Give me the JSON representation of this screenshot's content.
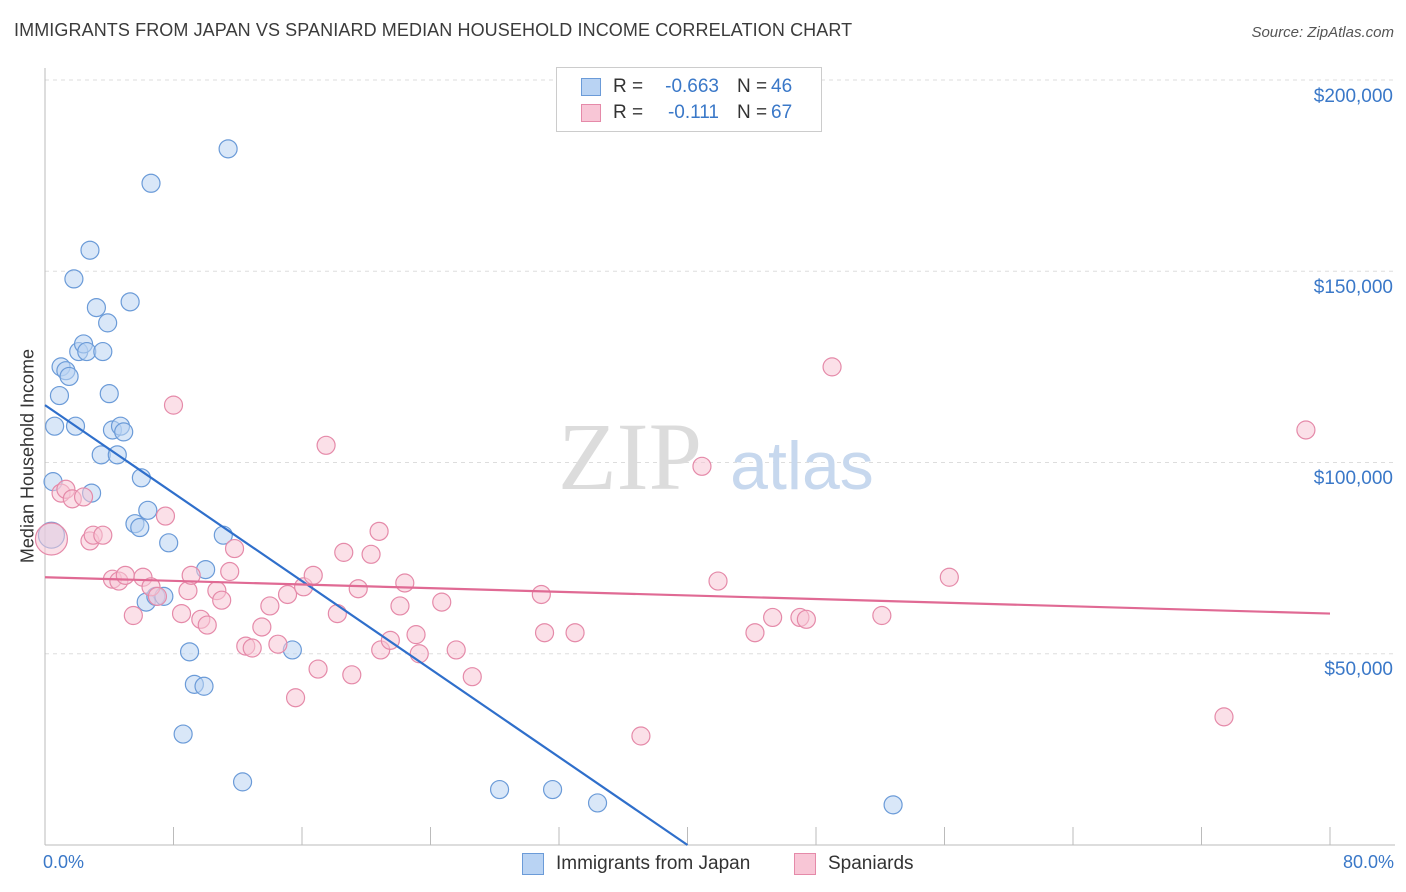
{
  "title": "IMMIGRANTS FROM JAPAN VS SPANIARD MEDIAN HOUSEHOLD INCOME CORRELATION CHART",
  "source": "Source: ZipAtlas.com",
  "watermark": {
    "zip": "ZIP",
    "atlas": "atlas"
  },
  "legend": {
    "rows": [
      {
        "r_label": "R =",
        "r_value": "-0.663",
        "n_label": "N =",
        "n_value": "46",
        "fill": "#b9d3f3",
        "stroke": "#6b9bd8"
      },
      {
        "r_label": "R =",
        "r_value": "-0.111",
        "n_label": "N =",
        "n_value": "67",
        "fill": "#f8c6d6",
        "stroke": "#e58aa9"
      }
    ]
  },
  "bottom_legend": [
    {
      "label": "Immigrants from Japan",
      "fill": "#b9d3f3",
      "stroke": "#6b9bd8"
    },
    {
      "label": "Spaniards",
      "fill": "#f8c6d6",
      "stroke": "#e58aa9"
    }
  ],
  "x_axis": {
    "min_label": "0.0%",
    "max_label": "80.0%"
  },
  "y_axis": {
    "label": "Median Household Income",
    "ticks": [
      "$200,000",
      "$150,000",
      "$100,000",
      "$50,000"
    ]
  },
  "chart_data": {
    "type": "scatter",
    "title": "IMMIGRANTS FROM JAPAN VS SPANIARD MEDIAN HOUSEHOLD INCOME CORRELATION CHART",
    "xlabel": "",
    "ylabel": "Median Household Income",
    "xlim": [
      0,
      80
    ],
    "ylim": [
      0,
      200000
    ],
    "yticks": [
      50000,
      100000,
      150000,
      200000
    ],
    "series": [
      {
        "name": "Immigrants from Japan",
        "color": "#6b9bd8",
        "fill": "#b9d3f3",
        "line_color": "#2f6fcb",
        "trend": {
          "x": [
            0.0,
            40.0
          ],
          "y": [
            115000,
            0
          ]
        },
        "points": [
          [
            0.4,
            81000
          ],
          [
            0.5,
            95000
          ],
          [
            0.6,
            109500
          ],
          [
            0.9,
            117500
          ],
          [
            1.0,
            125000
          ],
          [
            1.3,
            124000
          ],
          [
            1.5,
            122500
          ],
          [
            1.8,
            148000
          ],
          [
            1.9,
            109500
          ],
          [
            2.1,
            129000
          ],
          [
            2.4,
            131000
          ],
          [
            2.6,
            129000
          ],
          [
            2.8,
            155500
          ],
          [
            2.9,
            92000
          ],
          [
            3.2,
            140500
          ],
          [
            3.5,
            102000
          ],
          [
            3.6,
            129000
          ],
          [
            3.9,
            136500
          ],
          [
            4.0,
            118000
          ],
          [
            4.2,
            108500
          ],
          [
            4.5,
            102000
          ],
          [
            4.7,
            109500
          ],
          [
            4.9,
            108000
          ],
          [
            5.3,
            142000
          ],
          [
            5.6,
            84000
          ],
          [
            5.9,
            83000
          ],
          [
            6.0,
            96000
          ],
          [
            6.3,
            63500
          ],
          [
            6.4,
            87500
          ],
          [
            6.6,
            173000
          ],
          [
            6.9,
            65000
          ],
          [
            7.4,
            65000
          ],
          [
            7.7,
            79000
          ],
          [
            8.6,
            29000
          ],
          [
            9.0,
            50500
          ],
          [
            9.3,
            42000
          ],
          [
            9.9,
            41500
          ],
          [
            10.0,
            72000
          ],
          [
            11.1,
            81000
          ],
          [
            11.4,
            182000
          ],
          [
            12.3,
            16500
          ],
          [
            15.4,
            51000
          ],
          [
            28.3,
            14500
          ],
          [
            31.6,
            14500
          ],
          [
            34.4,
            11000
          ],
          [
            52.8,
            10500
          ]
        ]
      },
      {
        "name": "Spaniards",
        "color": "#e58aa9",
        "fill": "#f8c6d6",
        "line_color": "#e06a94",
        "trend": {
          "x": [
            0.0,
            80.0
          ],
          "y": [
            70000,
            60500
          ]
        },
        "points": [
          [
            0.4,
            80000
          ],
          [
            1.0,
            92000
          ],
          [
            1.3,
            93000
          ],
          [
            1.7,
            90500
          ],
          [
            2.4,
            91000
          ],
          [
            2.8,
            79500
          ],
          [
            3.0,
            81000
          ],
          [
            3.6,
            81000
          ],
          [
            4.2,
            69500
          ],
          [
            4.6,
            69000
          ],
          [
            5.0,
            70500
          ],
          [
            5.5,
            60000
          ],
          [
            6.1,
            70000
          ],
          [
            6.6,
            67500
          ],
          [
            7.0,
            65000
          ],
          [
            7.5,
            86000
          ],
          [
            8.0,
            115000
          ],
          [
            8.5,
            60500
          ],
          [
            8.9,
            66500
          ],
          [
            9.1,
            70500
          ],
          [
            9.7,
            59000
          ],
          [
            10.1,
            57500
          ],
          [
            10.7,
            66500
          ],
          [
            11.0,
            64000
          ],
          [
            11.5,
            71500
          ],
          [
            11.8,
            77500
          ],
          [
            12.5,
            52000
          ],
          [
            12.9,
            51500
          ],
          [
            13.5,
            57000
          ],
          [
            14.0,
            62500
          ],
          [
            14.5,
            52500
          ],
          [
            15.1,
            65500
          ],
          [
            15.6,
            38500
          ],
          [
            16.1,
            67500
          ],
          [
            16.7,
            70500
          ],
          [
            17.0,
            46000
          ],
          [
            17.5,
            104500
          ],
          [
            18.2,
            60500
          ],
          [
            18.6,
            76500
          ],
          [
            19.1,
            44500
          ],
          [
            19.5,
            67000
          ],
          [
            20.3,
            76000
          ],
          [
            20.8,
            82000
          ],
          [
            20.9,
            51000
          ],
          [
            21.5,
            53500
          ],
          [
            22.1,
            62500
          ],
          [
            22.4,
            68500
          ],
          [
            23.1,
            55000
          ],
          [
            23.3,
            50000
          ],
          [
            24.7,
            63500
          ],
          [
            25.6,
            51000
          ],
          [
            26.6,
            44000
          ],
          [
            30.9,
            65500
          ],
          [
            31.1,
            55500
          ],
          [
            33.0,
            55500
          ],
          [
            37.1,
            28500
          ],
          [
            40.9,
            99000
          ],
          [
            41.9,
            69000
          ],
          [
            44.2,
            55500
          ],
          [
            45.3,
            59500
          ],
          [
            47.0,
            59500
          ],
          [
            47.4,
            59000
          ],
          [
            49.0,
            125000
          ],
          [
            52.1,
            60000
          ],
          [
            56.3,
            70000
          ],
          [
            73.4,
            33500
          ],
          [
            78.5,
            108500
          ]
        ]
      }
    ]
  }
}
